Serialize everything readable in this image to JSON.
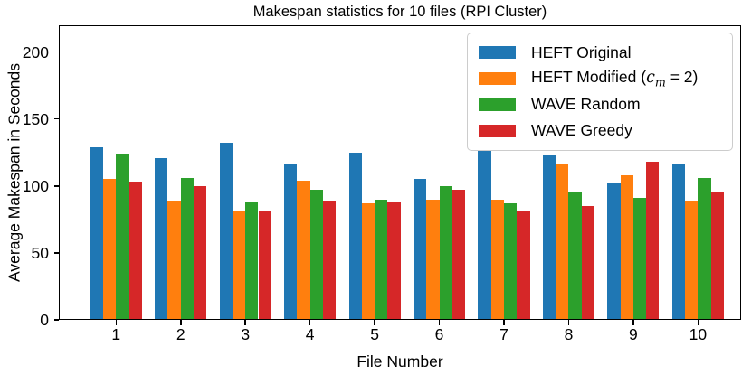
{
  "title": "Makespan statistics for 10 files (RPI Cluster)",
  "axes": {
    "xlabel": "File Number",
    "ylabel": "Average Makespan in Seconds"
  },
  "legend": {
    "position": "upper right",
    "border_color": "#cccccc",
    "items": [
      {
        "label": "HEFT Original",
        "color": "#1f77b4"
      },
      {
        "label_parts": {
          "prefix": "HEFT Modified (",
          "math_var": "c",
          "math_sub": "m",
          "suffix": " = 2)"
        },
        "plain_label": "HEFT Modified (c_m = 2)",
        "color": "#ff7f0e"
      },
      {
        "label": "WAVE Random",
        "color": "#2ca02c"
      },
      {
        "label": "WAVE Greedy",
        "color": "#d62728"
      }
    ]
  },
  "chart_data": {
    "type": "bar",
    "title": "Makespan statistics for 10 files (RPI Cluster)",
    "xlabel": "File Number",
    "ylabel": "Average Makespan in Seconds",
    "categories": [
      "1",
      "2",
      "3",
      "4",
      "5",
      "6",
      "7",
      "8",
      "9",
      "10"
    ],
    "series": [
      {
        "name": "HEFT Original",
        "color": "#1f77b4",
        "values": [
          129,
          121,
          132,
          117,
          125,
          105,
          126,
          123,
          102,
          117
        ]
      },
      {
        "name": "HEFT Modified (c_m = 2)",
        "color": "#ff7f0e",
        "values": [
          105,
          89,
          82,
          104,
          87,
          90,
          90,
          117,
          108,
          89
        ]
      },
      {
        "name": "WAVE Random",
        "color": "#2ca02c",
        "values": [
          124,
          106,
          88,
          97,
          90,
          100,
          87,
          96,
          91,
          106
        ]
      },
      {
        "name": "WAVE Greedy",
        "color": "#d62728",
        "values": [
          103,
          100,
          82,
          89,
          88,
          97,
          82,
          85,
          118,
          95
        ]
      }
    ],
    "ylim": [
      0,
      220
    ],
    "y_ticks": [
      0,
      50,
      100,
      150,
      200
    ],
    "bar_group_width": 0.8,
    "grid": false,
    "legend_position": "upper right"
  }
}
